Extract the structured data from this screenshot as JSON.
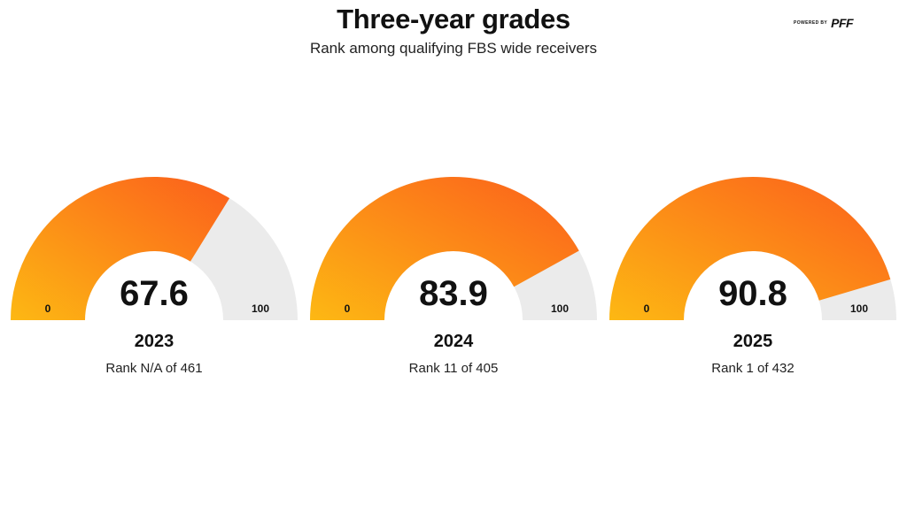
{
  "header": {
    "title": "Three-year grades",
    "subtitle": "Rank among qualifying FBS wide receivers",
    "powered_by": "POWERED BY",
    "logo": "PFF"
  },
  "chart_data": {
    "type": "gauge",
    "title": "Three-year grades",
    "subtitle": "Rank among qualifying FBS wide receivers",
    "range": [
      0,
      100
    ],
    "min_label": "0",
    "max_label": "100",
    "fill_gradient": [
      "#fdb813",
      "#fb5e1c"
    ],
    "track_color": "#ebebeb",
    "gauges": [
      {
        "year": "2023",
        "value": 67.6,
        "value_label": "67.6",
        "rank": "Rank N/A of 461"
      },
      {
        "year": "2024",
        "value": 83.9,
        "value_label": "83.9",
        "rank": "Rank 11 of 405"
      },
      {
        "year": "2025",
        "value": 90.8,
        "value_label": "90.8",
        "rank": "Rank 1 of 432"
      }
    ]
  }
}
